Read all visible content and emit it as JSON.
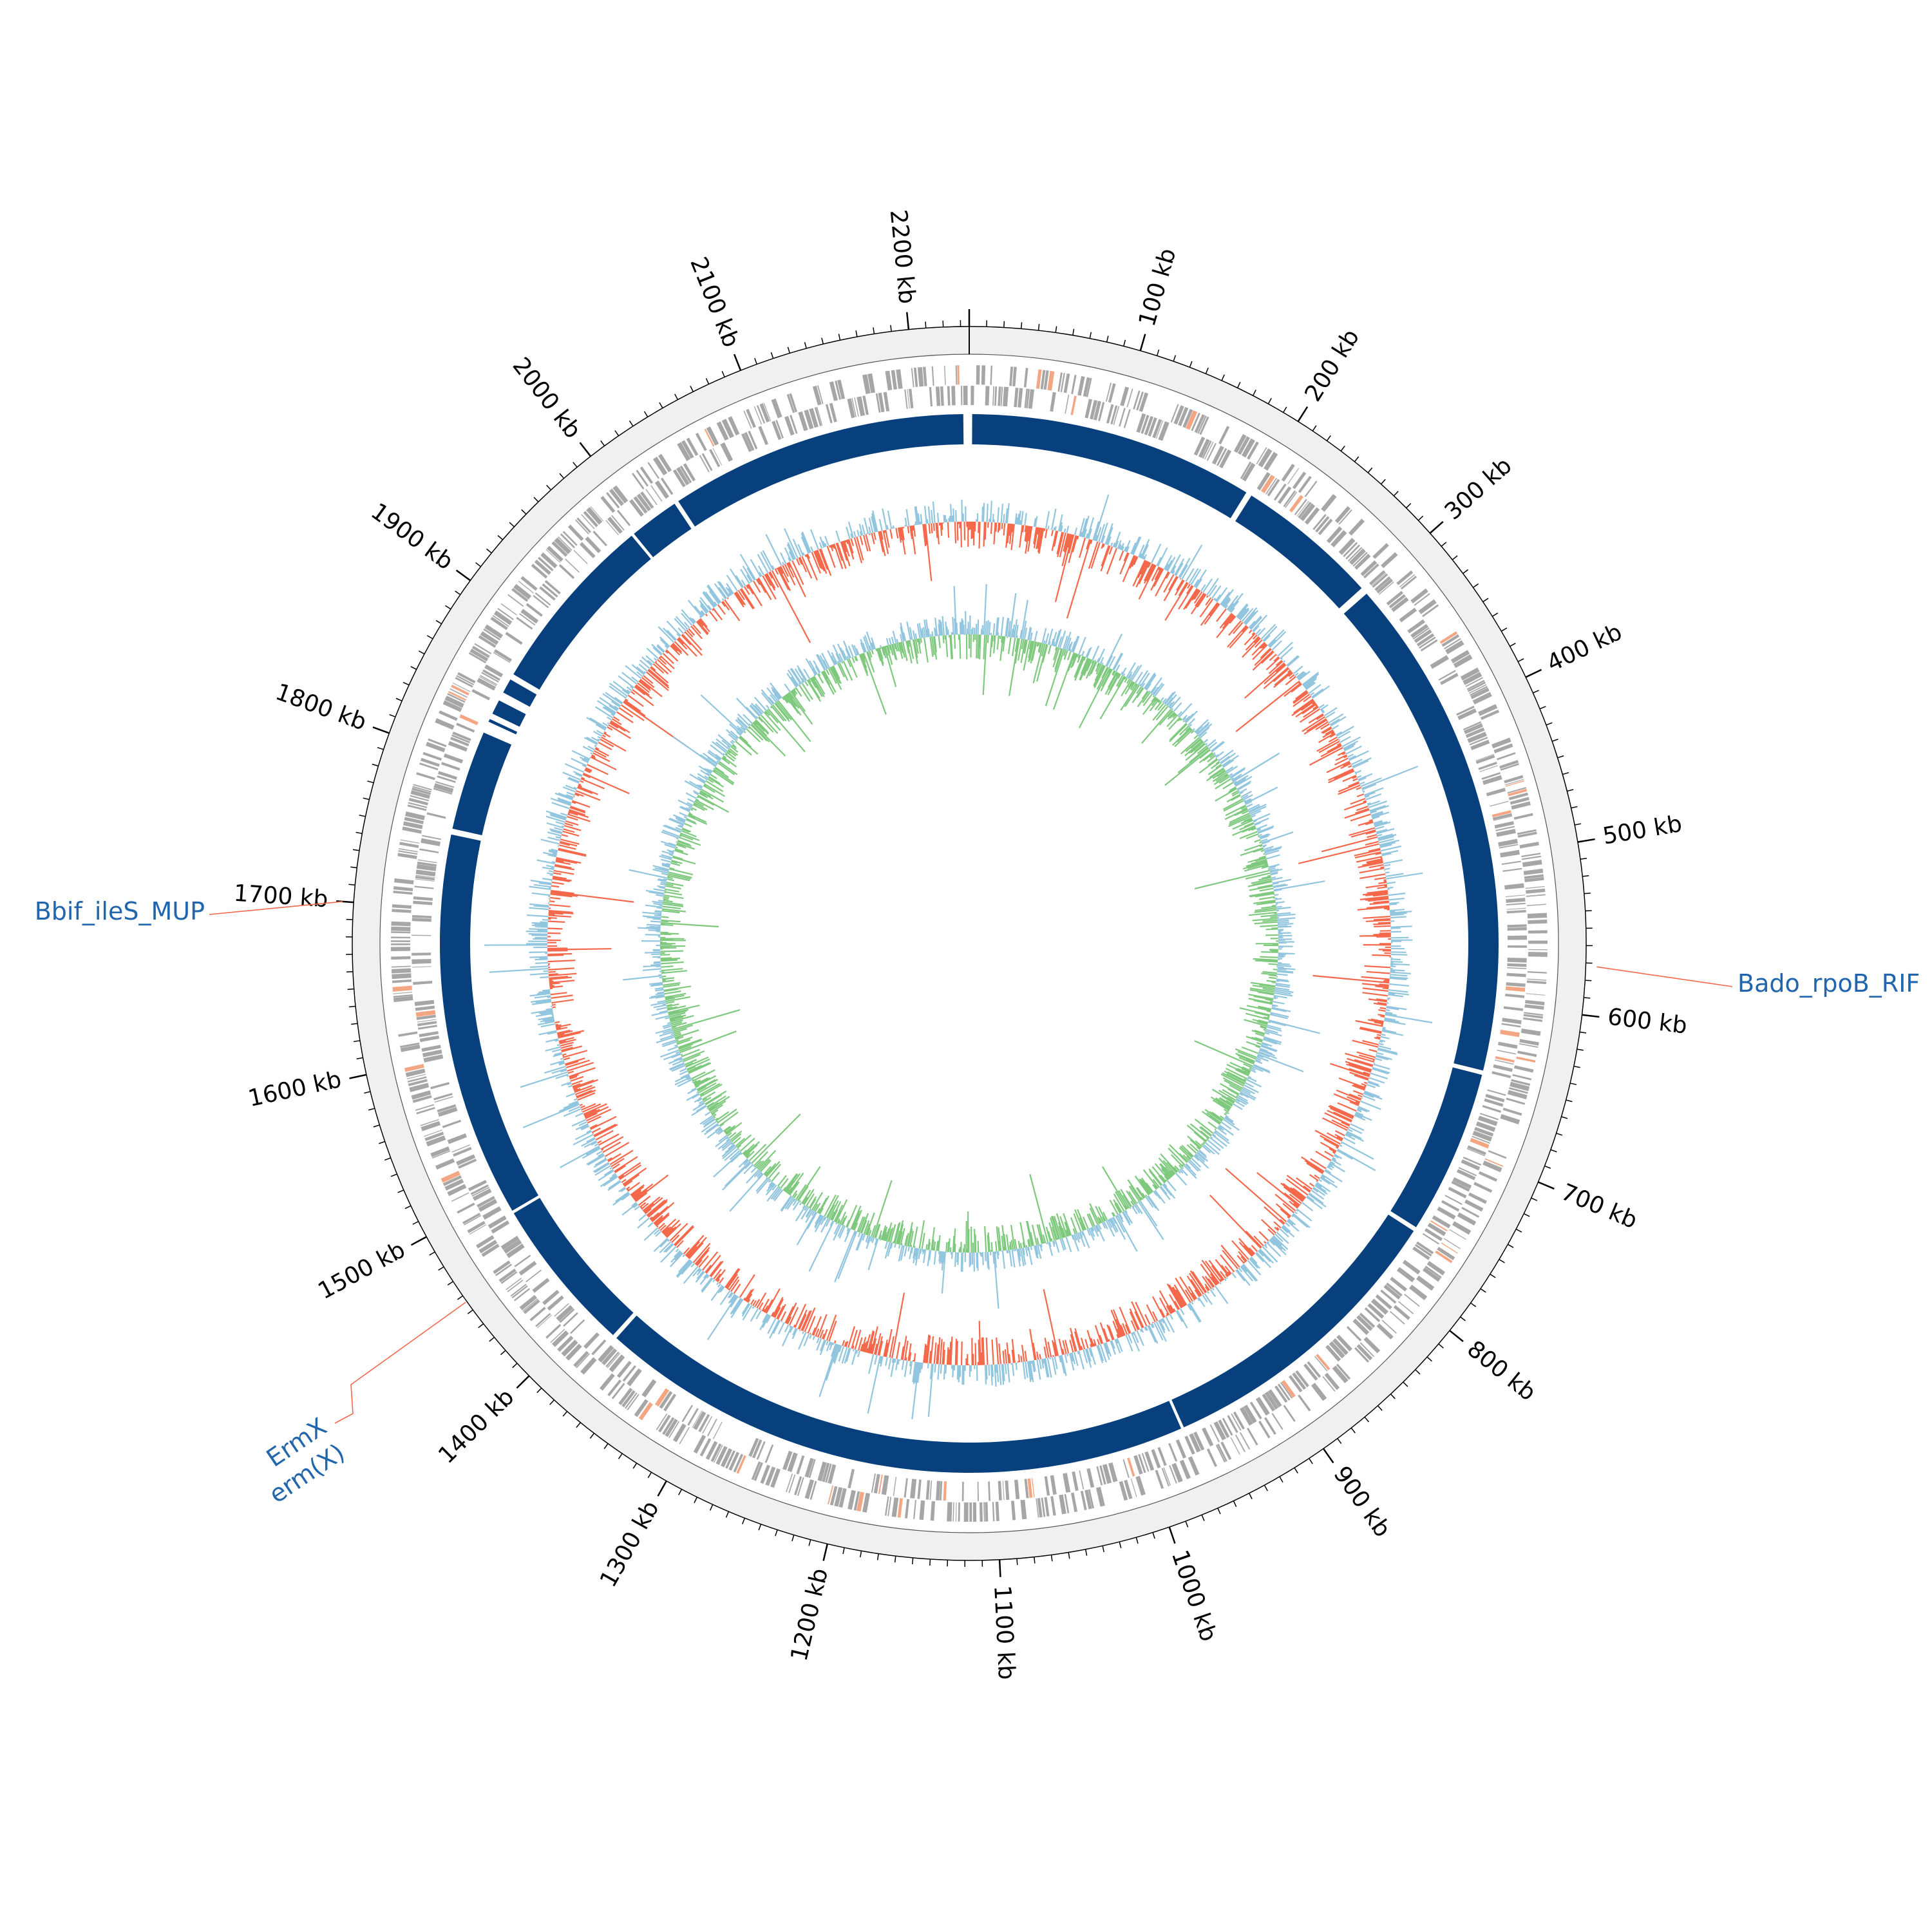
{
  "genome": {
    "length_kb": 2235,
    "tick_labels": [
      "100 kb",
      "200 kb",
      "300 kb",
      "400 kb",
      "500 kb",
      "600 kb",
      "700 kb",
      "800 kb",
      "900 kb",
      "1000 kb",
      "1100 kb",
      "1200 kb",
      "1300 kb",
      "1400 kb",
      "1500 kb",
      "1600 kb",
      "1700 kb",
      "1800 kb",
      "1900 kb",
      "2000 kb",
      "2100 kb",
      "2200 kb"
    ],
    "tick_values_kb": [
      100,
      200,
      300,
      400,
      500,
      600,
      700,
      800,
      900,
      1000,
      1100,
      1200,
      1300,
      1400,
      1500,
      1600,
      1700,
      1800,
      1900,
      2000,
      2100,
      2200
    ]
  },
  "annotations": [
    {
      "name": "Bado_rpoB_RIF",
      "position_kb": 572
    },
    {
      "name": "Bbif_ileS_MUP",
      "position_kb": 1700
    },
    {
      "name": "ErmX",
      "name2": "erm(X)",
      "position_kb": 1456
    }
  ],
  "contigs_kb": [
    [
      2,
      196
    ],
    [
      200,
      297
    ],
    [
      302,
      645
    ],
    [
      648,
      760
    ],
    [
      763,
      969
    ],
    [
      971,
      1377
    ],
    [
      1380,
      1486
    ],
    [
      1488,
      1750
    ],
    [
      1754,
      1822
    ],
    [
      1830,
      1832
    ],
    [
      1836,
      1846
    ],
    [
      1852,
      1862
    ],
    [
      1866,
      1989
    ],
    [
      1991,
      2025
    ],
    [
      2028,
      2231
    ]
  ],
  "colors": {
    "contig": "#08407e",
    "gene": "#a6a6a6",
    "gene_highlight": "#f4a582",
    "gc_content_high": "#92c5de",
    "gc_content_low": "#f4684b",
    "gc_skew_pos": "#92c5de",
    "gc_skew_neg": "#7fc97f",
    "ring_background": "#f0f0f0",
    "annotation_line": "#f4684b",
    "annotation_text": "#2166ac"
  }
}
